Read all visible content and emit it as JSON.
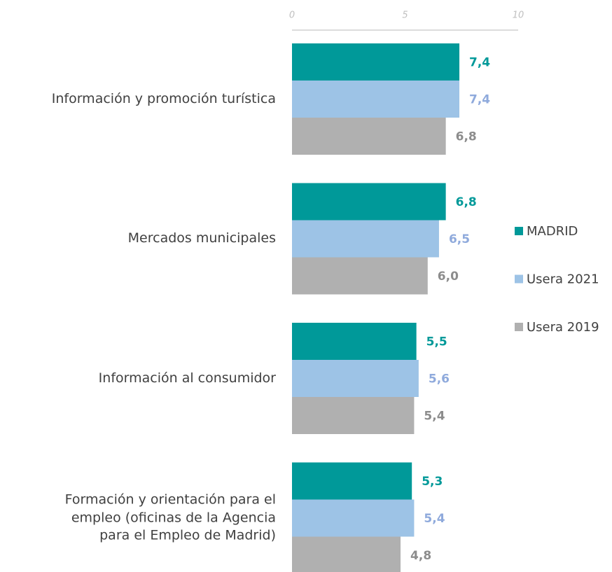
{
  "chart_data": {
    "type": "bar",
    "orientation": "horizontal",
    "categories": [
      "Información y promoción turística",
      "Mercados municipales",
      "Información al consumidor",
      "Formación y orientación para el\nempleo (oficinas de la Agencia\npara el Empleo de Madrid)"
    ],
    "series": [
      {
        "name": "MADRID",
        "color": "#009999",
        "label_color": "#009999",
        "values": [
          7.4,
          6.8,
          5.5,
          5.3
        ],
        "value_labels": [
          "7,4",
          "6,8",
          "5,5",
          "5,3"
        ]
      },
      {
        "name": "Usera 2021",
        "color": "#9dc3e6",
        "label_color": "#8faadc",
        "values": [
          7.4,
          6.5,
          5.6,
          5.4
        ],
        "value_labels": [
          "7,4",
          "6,5",
          "5,6",
          "5,4"
        ]
      },
      {
        "name": "Usera 2019",
        "color": "#b0b0b0",
        "label_color": "#8c8c8c",
        "values": [
          6.8,
          6.0,
          5.4,
          4.8
        ],
        "value_labels": [
          "6,8",
          "6,0",
          "5,4",
          "4,8"
        ]
      }
    ],
    "xlim": [
      0,
      10
    ],
    "xticks": [
      0,
      5,
      10
    ],
    "grid": false,
    "legend": "right"
  }
}
